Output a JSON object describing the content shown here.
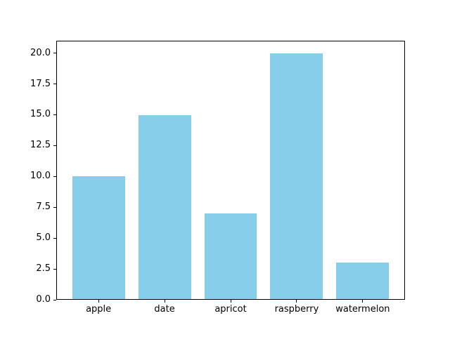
{
  "chart_data": {
    "type": "bar",
    "categories": [
      "apple",
      "date",
      "apricot",
      "raspberry",
      "watermelon"
    ],
    "values": [
      10,
      15,
      7,
      20,
      3
    ],
    "title": "",
    "xlabel": "",
    "ylabel": "",
    "ylim": [
      0,
      21
    ],
    "ytick_labels": [
      "0.0",
      "2.5",
      "5.0",
      "7.5",
      "10.0",
      "12.5",
      "15.0",
      "17.5",
      "20.0"
    ],
    "bar_width_fraction": 0.8,
    "bar_color": "#87CEEB",
    "axis_color": "#000000",
    "background_color": "#ffffff",
    "grid": false,
    "legend": "none"
  }
}
